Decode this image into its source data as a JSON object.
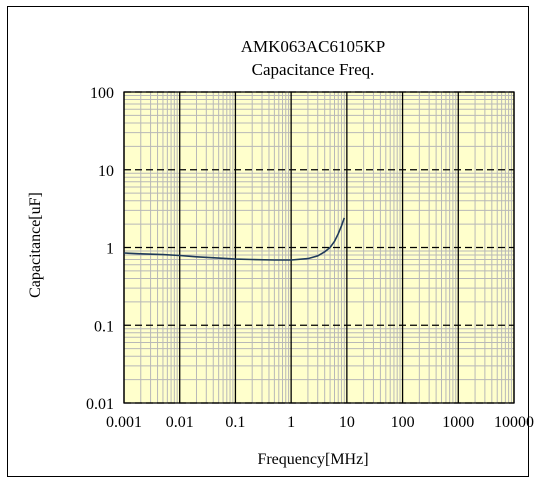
{
  "chart_data": {
    "type": "line",
    "title": "AMK063AC6105KP",
    "subtitle": "Capacitance Freq.",
    "xlabel": "Frequency[MHz]",
    "ylabel": "Capacitance[uF]",
    "x_scale": "log",
    "y_scale": "log",
    "xlim": [
      0.001,
      10000
    ],
    "ylim": [
      0.01,
      100
    ],
    "x_tick_labels": [
      "0.001",
      "0.01",
      "0.1",
      "1",
      "10",
      "100",
      "1000",
      "10000"
    ],
    "y_tick_labels": [
      "0.01",
      "0.1",
      "1",
      "10",
      "100"
    ],
    "grid": true,
    "plot_background": "#ffffcc",
    "series": [
      {
        "name": "",
        "color": "#1f3a5a",
        "x": [
          0.001,
          0.002,
          0.005,
          0.01,
          0.02,
          0.05,
          0.1,
          0.2,
          0.5,
          1,
          2,
          3,
          4,
          5,
          6,
          7,
          8,
          9
        ],
        "y": [
          0.85,
          0.83,
          0.81,
          0.79,
          0.76,
          0.73,
          0.71,
          0.7,
          0.69,
          0.69,
          0.72,
          0.78,
          0.88,
          1.0,
          1.2,
          1.5,
          1.9,
          2.4
        ]
      }
    ]
  }
}
